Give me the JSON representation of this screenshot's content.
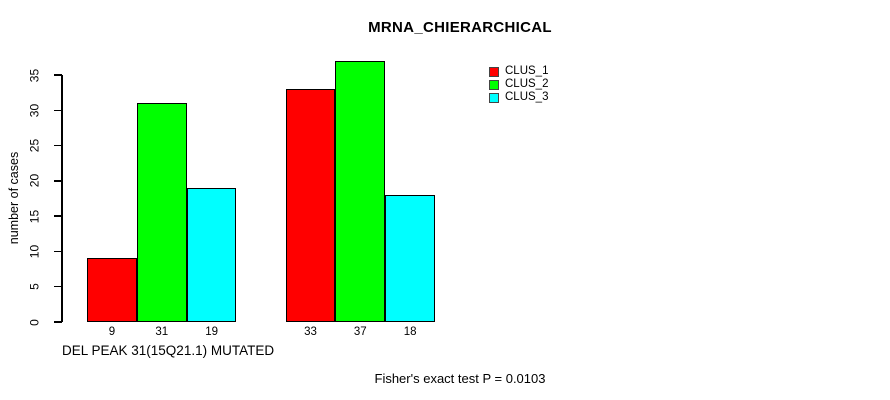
{
  "chart_data": {
    "type": "bar",
    "title": "MRNA_CHIERARCHICAL",
    "ylabel": "number of cases",
    "xlabel": "DEL PEAK 31(15Q21.1) MUTATED",
    "annotation": "Fisher's exact test P = 0.0103",
    "ylim": [
      0,
      35
    ],
    "yticks": [
      0,
      5,
      10,
      15,
      20,
      25,
      30,
      35
    ],
    "groups": 2,
    "series": [
      {
        "name": "CLUS_1",
        "color": "#ff0000",
        "values": [
          9,
          33
        ]
      },
      {
        "name": "CLUS_2",
        "color": "#00ff00",
        "values": [
          31,
          37
        ]
      },
      {
        "name": "CLUS_3",
        "color": "#00ffff",
        "values": [
          19,
          18
        ]
      }
    ],
    "bar_value_labels": [
      [
        "9",
        "31",
        "19"
      ],
      [
        "33",
        "37",
        "18"
      ]
    ],
    "legend": [
      {
        "label": "CLUS_1",
        "color": "#ff0000"
      },
      {
        "label": "CLUS_2",
        "color": "#00ff00"
      },
      {
        "label": "CLUS_3",
        "color": "#00ffff"
      }
    ],
    "legend_position": "top-right",
    "grid": false,
    "background": "#ffffff",
    "text_color": "#000000"
  }
}
